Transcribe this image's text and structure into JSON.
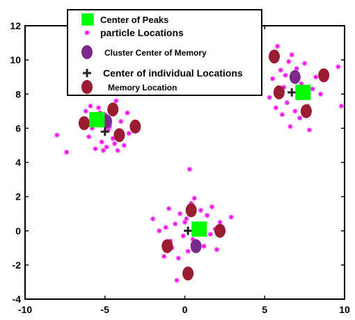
{
  "chart_data": {
    "type": "scatter",
    "title": "",
    "xlabel": "",
    "ylabel": "",
    "xlim": [
      -10,
      10
    ],
    "ylim": [
      -4,
      12
    ],
    "xticks": [
      -10,
      -5,
      0,
      5,
      10
    ],
    "yticks": [
      -4,
      -2,
      0,
      2,
      4,
      6,
      8,
      10,
      12
    ],
    "grid": false,
    "legend_position": "top-left",
    "series": [
      {
        "name": "Center of Peaks",
        "marker": "square",
        "color": "#00ff00",
        "points": [
          [
            -5.5,
            6.5
          ],
          [
            0.9,
            0.1
          ],
          [
            7.4,
            8.1
          ]
        ]
      },
      {
        "name": "particle Locations",
        "marker": "asterisk",
        "color": "#ff00ff",
        "points": [
          [
            -8.0,
            5.6
          ],
          [
            -7.4,
            4.6
          ],
          [
            -6.2,
            7.0
          ],
          [
            -6.0,
            5.5
          ],
          [
            -5.8,
            6.0
          ],
          [
            -5.6,
            4.8
          ],
          [
            -5.4,
            7.2
          ],
          [
            -5.2,
            5.2
          ],
          [
            -5.0,
            6.8
          ],
          [
            -4.9,
            4.9
          ],
          [
            -4.7,
            6.1
          ],
          [
            -4.5,
            5.4
          ],
          [
            -4.3,
            7.6
          ],
          [
            -4.2,
            4.7
          ],
          [
            -4.0,
            6.4
          ],
          [
            -3.8,
            5.0
          ],
          [
            -3.6,
            6.9
          ],
          [
            -3.5,
            5.7
          ],
          [
            -4.8,
            5.9
          ],
          [
            -5.3,
            6.9
          ],
          [
            -4.4,
            5.1
          ],
          [
            -6.4,
            6.3
          ],
          [
            -5.9,
            7.3
          ],
          [
            -3.9,
            5.6
          ],
          [
            -5.1,
            4.7
          ],
          [
            0.3,
            3.6
          ],
          [
            -2.0,
            0.7
          ],
          [
            -1.6,
            0.0
          ],
          [
            -1.3,
            -1.5
          ],
          [
            -1.0,
            1.3
          ],
          [
            -0.9,
            -0.6
          ],
          [
            -0.6,
            0.4
          ],
          [
            -0.5,
            -2.9
          ],
          [
            -0.3,
            1.0
          ],
          [
            -0.1,
            -0.3
          ],
          [
            0.1,
            0.7
          ],
          [
            0.2,
            -1.2
          ],
          [
            0.4,
            1.6
          ],
          [
            0.5,
            -0.5
          ],
          [
            0.7,
            0.3
          ],
          [
            1.0,
            1.2
          ],
          [
            1.2,
            -0.9
          ],
          [
            1.4,
            0.9
          ],
          [
            1.6,
            -0.2
          ],
          [
            1.7,
            1.4
          ],
          [
            2.0,
            -1.1
          ],
          [
            2.2,
            0.5
          ],
          [
            2.9,
            0.8
          ],
          [
            -0.8,
            -1.0
          ],
          [
            0.0,
            0.5
          ],
          [
            1.1,
            -0.1
          ],
          [
            -1.2,
            0.2
          ],
          [
            0.6,
            1.9
          ],
          [
            1.9,
            0.1
          ],
          [
            -0.4,
            -1.6
          ],
          [
            5.3,
            7.8
          ],
          [
            5.5,
            8.9
          ],
          [
            5.7,
            7.2
          ],
          [
            5.8,
            10.8
          ],
          [
            6.0,
            9.4
          ],
          [
            6.1,
            6.8
          ],
          [
            6.2,
            8.4
          ],
          [
            6.4,
            7.5
          ],
          [
            6.5,
            9.9
          ],
          [
            6.6,
            6.1
          ],
          [
            6.8,
            8.8
          ],
          [
            6.9,
            7.0
          ],
          [
            7.0,
            9.5
          ],
          [
            7.2,
            6.6
          ],
          [
            7.3,
            8.6
          ],
          [
            7.5,
            9.8
          ],
          [
            7.7,
            7.3
          ],
          [
            7.8,
            5.9
          ],
          [
            8.0,
            8.3
          ],
          [
            8.2,
            9.0
          ],
          [
            8.5,
            8.0
          ],
          [
            9.6,
            9.6
          ],
          [
            9.8,
            7.3
          ],
          [
            6.3,
            9.1
          ],
          [
            7.1,
            7.8
          ],
          [
            5.9,
            8.0
          ],
          [
            6.7,
            10.3
          ]
        ]
      },
      {
        "name": "Cluster Center of Memory",
        "marker": "ellipse",
        "color": "#7b2a8c",
        "points": [
          [
            -4.9,
            6.4
          ],
          [
            0.7,
            -0.9
          ],
          [
            6.9,
            9.0
          ]
        ]
      },
      {
        "name": "Center of individual Locations",
        "marker": "plus",
        "color": "#222222",
        "points": [
          [
            -5.0,
            5.8
          ],
          [
            0.2,
            0.0
          ],
          [
            6.7,
            8.1
          ]
        ]
      },
      {
        "name": "Memory Location",
        "marker": "ellipse",
        "color": "#9b1b30",
        "points": [
          [
            -6.3,
            6.3
          ],
          [
            -4.5,
            7.1
          ],
          [
            -4.1,
            5.6
          ],
          [
            -3.1,
            6.1
          ],
          [
            0.4,
            1.2
          ],
          [
            2.2,
            0.0
          ],
          [
            -1.1,
            -0.9
          ],
          [
            0.2,
            -2.5
          ],
          [
            5.6,
            10.2
          ],
          [
            5.9,
            8.1
          ],
          [
            7.6,
            7.0
          ],
          [
            8.7,
            9.1
          ]
        ]
      }
    ]
  }
}
